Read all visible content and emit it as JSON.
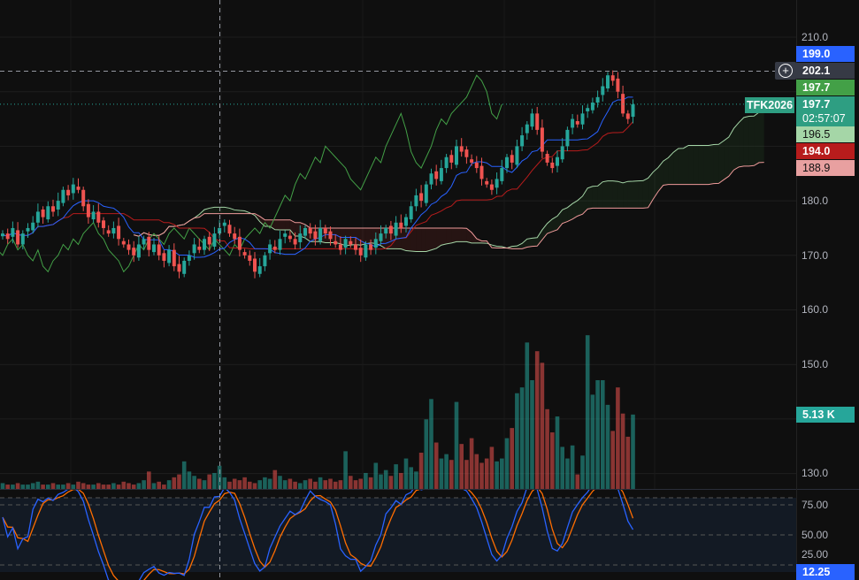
{
  "chart_data": {
    "type": "candlestick",
    "symbol": "TFK2026",
    "price_axis": {
      "ticks": [
        "210.0",
        "180.0",
        "170.0",
        "160.0",
        "150.0",
        "130.0"
      ],
      "range": [
        127,
        214
      ]
    },
    "oscillator_axis": {
      "ticks": [
        "75.00",
        "50.00",
        "25.00"
      ],
      "range": [
        14,
        88
      ]
    },
    "closes": [
      174,
      173,
      175,
      172,
      174,
      175,
      176,
      178,
      177,
      179,
      178,
      180,
      182,
      181,
      183,
      182,
      179,
      177,
      178,
      176,
      175,
      174,
      175,
      173,
      172,
      171,
      170,
      172,
      173,
      171,
      172,
      170,
      169,
      171,
      168,
      167,
      169,
      170,
      172,
      171,
      173,
      172,
      174,
      175,
      176,
      174,
      173,
      171,
      170,
      169,
      167,
      168,
      170,
      172,
      171,
      173,
      174,
      173,
      172,
      174,
      175,
      174,
      173,
      175,
      174,
      173,
      172,
      171,
      173,
      172,
      171,
      170,
      172,
      171,
      173,
      174,
      175,
      174,
      176,
      175,
      177,
      179,
      181,
      180,
      183,
      185,
      184,
      186,
      188,
      187,
      190,
      189,
      188,
      187,
      186,
      184,
      183,
      182,
      184,
      186,
      188,
      187,
      190,
      192,
      194,
      196,
      193,
      189,
      187,
      186,
      188,
      190,
      193,
      195,
      194,
      196,
      197,
      198,
      199,
      201,
      203,
      202,
      200,
      196,
      195,
      197.7
    ],
    "volumes_k": [
      0.4,
      0.3,
      0.3,
      0.4,
      0.3,
      0.3,
      0.4,
      0.5,
      0.3,
      0.3,
      0.4,
      0.3,
      0.3,
      0.4,
      0.3,
      0.5,
      0.4,
      0.3,
      0.3,
      0.4,
      0.3,
      0.3,
      0.4,
      0.3,
      0.5,
      0.4,
      0.3,
      0.4,
      0.6,
      1.2,
      0.4,
      0.5,
      0.3,
      0.6,
      0.8,
      1.0,
      1.9,
      1.2,
      0.9,
      0.7,
      0.6,
      1.0,
      1.1,
      1.6,
      0.8,
      0.5,
      0.7,
      0.6,
      0.8,
      0.5,
      0.4,
      0.6,
      0.8,
      0.7,
      1.3,
      0.9,
      0.6,
      0.7,
      0.5,
      0.4,
      0.6,
      0.7,
      0.5,
      0.8,
      0.6,
      0.7,
      0.5,
      0.6,
      2.6,
      0.9,
      0.6,
      0.7,
      1.1,
      0.8,
      1.8,
      1.0,
      1.3,
      0.9,
      1.7,
      1.1,
      2.1,
      1.5,
      1.2,
      2.5,
      4.8,
      6.2,
      3.2,
      2.1,
      2.4,
      2.0,
      6.0,
      3.1,
      2.0,
      3.5,
      2.4,
      1.8,
      2.1,
      2.9,
      1.9,
      2.1,
      3.5,
      4.2,
      6.6,
      7.0,
      10.1,
      7.5,
      9.5,
      8.7,
      5.5,
      3.9,
      5.0,
      2.9,
      2.1,
      3.0,
      1.0,
      2.3,
      10.6,
      6.5,
      7.5,
      7.5,
      5.8,
      4.0,
      7.0,
      5.2,
      3.6,
      5.13
    ],
    "crosshair_price": "202.1",
    "labels": {
      "top_cut": "199.0",
      "crosshair": "202.1",
      "lagging": "197.7",
      "last_price": "197.7",
      "countdown": "02:57:07",
      "span_a": "196.5",
      "base_line": "194.0",
      "span_b": "188.9",
      "volume": "5.13 K",
      "stoch": "12.25"
    },
    "colors": {
      "up": "#26a69a",
      "down": "#ef5350",
      "tenkan": "#2962ff",
      "kijun": "#b71c1c",
      "chikou": "#43a047",
      "span_a": "#a5d6a7",
      "span_b": "#ef9a9a",
      "stoch_k": "#2962ff",
      "stoch_d": "#ff6d00"
    }
  }
}
